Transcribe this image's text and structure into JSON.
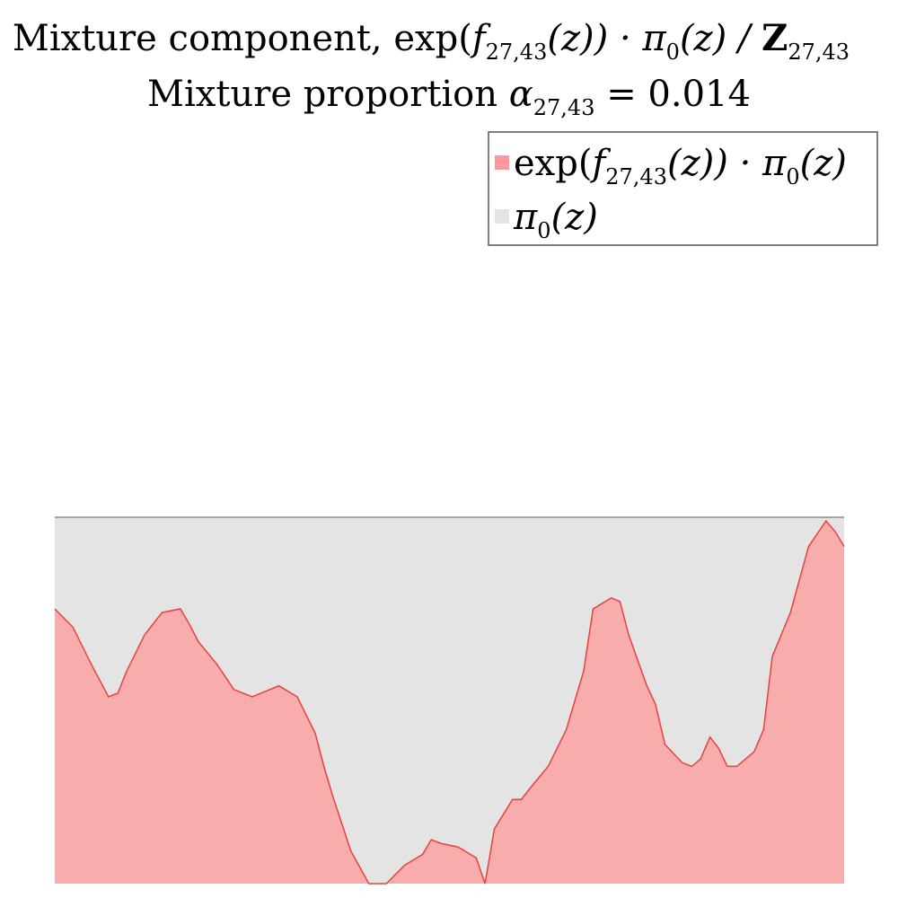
{
  "chart_data": {
    "type": "area",
    "title": {
      "line1_prefix": "Mixture component, exp(",
      "line1_f": "f",
      "line1_f_sub": "27,43",
      "line1_mid": "(z)) · π",
      "line1_pi_sub": "0",
      "line1_mid2": "(z) / ",
      "line1_Z": "Z",
      "line1_Z_sub": "27,43",
      "line2_prefix": "Mixture proportion ",
      "line2_alpha": "α",
      "line2_alpha_sub": "27,43",
      "line2_suffix": " = 0.014"
    },
    "legend": {
      "placement": "top-right",
      "entries": [
        {
          "series": "component",
          "parts": [
            "exp(",
            "f",
            "27,43",
            "(z)) · π",
            "0",
            "(z)"
          ]
        },
        {
          "series": "prior",
          "parts": [
            "π",
            "0",
            "(z)"
          ]
        }
      ]
    },
    "axes_visible": false,
    "grid": false,
    "xlim": [
      0,
      1
    ],
    "ylim": [
      0,
      1.75
    ],
    "series": [
      {
        "key": "prior",
        "color": "#e4e4e4",
        "line_color": "#8c8c8c",
        "x": [
          0,
          1
        ],
        "y": [
          1.0,
          1.0
        ]
      },
      {
        "key": "component",
        "color": "#ff9999",
        "line_color": "#e8413c",
        "x": [
          0.0,
          0.023,
          0.046,
          0.068,
          0.08,
          0.091,
          0.114,
          0.136,
          0.159,
          0.17,
          0.182,
          0.205,
          0.227,
          0.25,
          0.284,
          0.307,
          0.33,
          0.341,
          0.352,
          0.375,
          0.398,
          0.42,
          0.443,
          0.466,
          0.477,
          0.489,
          0.511,
          0.534,
          0.545,
          0.557,
          0.58,
          0.591,
          0.602,
          0.625,
          0.648,
          0.67,
          0.682,
          0.705,
          0.716,
          0.727,
          0.75,
          0.761,
          0.773,
          0.795,
          0.807,
          0.818,
          0.83,
          0.841,
          0.852,
          0.864,
          0.886,
          0.898,
          0.909,
          0.932,
          0.955,
          0.977,
          0.989,
          1.0
        ],
        "y": [
          0.75,
          0.7,
          0.6,
          0.51,
          0.52,
          0.58,
          0.68,
          0.74,
          0.75,
          0.71,
          0.66,
          0.6,
          0.53,
          0.51,
          0.54,
          0.51,
          0.41,
          0.32,
          0.24,
          0.09,
          -0.05,
          -0.09,
          0.05,
          0.08,
          0.12,
          0.11,
          0.1,
          0.07,
          0.0,
          0.15,
          0.23,
          0.23,
          0.26,
          0.32,
          0.42,
          0.58,
          0.75,
          0.78,
          0.77,
          0.68,
          0.54,
          0.49,
          0.38,
          0.33,
          0.32,
          0.34,
          0.4,
          0.37,
          0.32,
          0.32,
          0.36,
          0.42,
          0.62,
          0.74,
          0.92,
          0.99,
          0.96,
          0.92
        ]
      }
    ]
  }
}
